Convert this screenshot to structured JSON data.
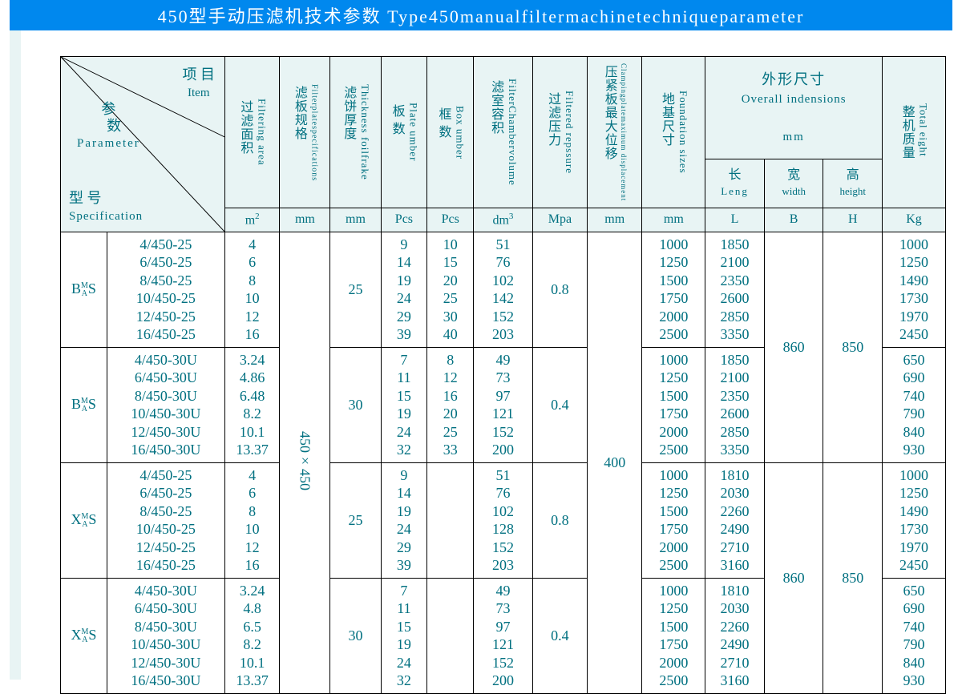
{
  "title": "450型手动压滤机技术参数 Type450manualfiltermachinetechniqueparameter",
  "header": {
    "diag": {
      "item": "项  目",
      "item_en": "Item",
      "param": "参",
      "param2": "数",
      "param_en": "Parameter",
      "spec": "型  号",
      "spec_en": "Specification"
    },
    "cols": [
      {
        "cn": "过滤面积",
        "en": "Filtering area",
        "unit": "m²"
      },
      {
        "cn": "滤板规格",
        "en": "Filterplatespecifications",
        "unit": "mm"
      },
      {
        "cn": "滤饼厚度",
        "en": "Thickness foilfrake",
        "unit": "mm"
      },
      {
        "cn": "板 数",
        "en": "Plate umber",
        "unit": "Pcs"
      },
      {
        "cn": "框 数",
        "en": "Box umber",
        "unit": "Pcs"
      },
      {
        "cn": "滤室容积",
        "en": "FilterChambervolume",
        "unit": "dm³"
      },
      {
        "cn": "过滤压力",
        "en": "Filtered repssure",
        "unit": "Mpa"
      },
      {
        "cn": "压紧板最大位移",
        "en": "Clampingplatemaximum displacement",
        "unit": "mm"
      },
      {
        "cn": "地基尺寸",
        "en": "Foundation sizes",
        "unit": "mm"
      }
    ],
    "overall": {
      "cn": "外形尺寸",
      "en": "Overall indensions",
      "unit": "mm",
      "sub": [
        {
          "cn": "长",
          "en": "Leng",
          "sym": "L"
        },
        {
          "cn": "宽",
          "en": "width",
          "sym": "B"
        },
        {
          "cn": "高",
          "en": "height",
          "sym": "H"
        }
      ]
    },
    "weight": {
      "cn": "整机质量",
      "en": "Total eight",
      "unit": "Kg"
    }
  },
  "plate_spec": "450×450",
  "max_disp": "400",
  "groups": [
    {
      "prefix_main": "B",
      "prefix_stack": "M\nA",
      "prefix_suffix": "S",
      "models": [
        "4/450-25",
        "6/450-25",
        "8/450-25",
        "10/450-25",
        "12/450-25",
        "16/450-25"
      ],
      "area": [
        "4",
        "6",
        "8",
        "10",
        "12",
        "16"
      ],
      "thick": "25",
      "plate": [
        "9",
        "14",
        "19",
        "24",
        "29",
        "39"
      ],
      "box": [
        "10",
        "15",
        "20",
        "25",
        "30",
        "40"
      ],
      "vol": [
        "51",
        "76",
        "102",
        "142",
        "152",
        "203"
      ],
      "press": "0.8",
      "found": [
        "1000",
        "1250",
        "1500",
        "1750",
        "2000",
        "2500"
      ],
      "L": [
        "1850",
        "2100",
        "2350",
        "2600",
        "2850",
        "3350"
      ],
      "B": "860",
      "H": "850",
      "wt": [
        "1000",
        "1250",
        "1490",
        "1730",
        "1970",
        "2450"
      ],
      "B_rowspan": 2
    },
    {
      "prefix_main": "B",
      "prefix_stack": "M\nA",
      "prefix_suffix": "S",
      "models": [
        "4/450-30U",
        "6/450-30U",
        "8/450-30U",
        "10/450-30U",
        "12/450-30U",
        "16/450-30U"
      ],
      "area": [
        "3.24",
        "4.86",
        "6.48",
        "8.2",
        "10.1",
        "13.37"
      ],
      "thick": "30",
      "plate": [
        "7",
        "11",
        "15",
        "19",
        "24",
        "32"
      ],
      "box": [
        "8",
        "12",
        "16",
        "20",
        "25",
        "33"
      ],
      "vol": [
        "49",
        "73",
        "97",
        "121",
        "152",
        "200"
      ],
      "press": "0.4",
      "found": [
        "1000",
        "1250",
        "1500",
        "1750",
        "2000",
        "2500"
      ],
      "L": [
        "1850",
        "2100",
        "2350",
        "2600",
        "2850",
        "3350"
      ],
      "wt": [
        "650",
        "690",
        "740",
        "790",
        "840",
        "930"
      ]
    },
    {
      "prefix_main": "X",
      "prefix_stack": "M\nA",
      "prefix_suffix": "S",
      "models": [
        "4/450-25",
        "6/450-25",
        "8/450-25",
        "10/450-25",
        "12/450-25",
        "16/450-25"
      ],
      "area": [
        "4",
        "6",
        "8",
        "10",
        "12",
        "16"
      ],
      "thick": "25",
      "plate": [
        "9",
        "14",
        "19",
        "24",
        "29",
        "39"
      ],
      "box": null,
      "vol": [
        "51",
        "76",
        "102",
        "128",
        "152",
        "203"
      ],
      "press": "0.8",
      "found": [
        "1000",
        "1250",
        "1500",
        "1750",
        "2000",
        "2500"
      ],
      "L": [
        "1810",
        "2030",
        "2260",
        "2490",
        "2710",
        "3160"
      ],
      "B": "860",
      "H": "850",
      "wt": [
        "1000",
        "1250",
        "1490",
        "1730",
        "1970",
        "2450"
      ],
      "B_rowspan": 2
    },
    {
      "prefix_main": "X",
      "prefix_stack": "M\nA",
      "prefix_suffix": "S",
      "models": [
        "4/450-30U",
        "6/450-30U",
        "8/450-30U",
        "10/450-30U",
        "12/450-30U",
        "16/450-30U"
      ],
      "area": [
        "3.24",
        "4.8",
        "6.5",
        "8.2",
        "10.1",
        "13.37"
      ],
      "thick": "30",
      "plate": [
        "7",
        "11",
        "15",
        "19",
        "24",
        "32"
      ],
      "box": null,
      "vol": [
        "49",
        "73",
        "97",
        "121",
        "152",
        "200"
      ],
      "press": "0.4",
      "found": [
        "1000",
        "1250",
        "1500",
        "1750",
        "2000",
        "2500"
      ],
      "L": [
        "1810",
        "2030",
        "2260",
        "2490",
        "2710",
        "3160"
      ],
      "wt": [
        "650",
        "690",
        "740",
        "790",
        "840",
        "930"
      ]
    }
  ],
  "style": {
    "title_bg": "#0088ee",
    "header_bg": "#e8f4f4",
    "text_color": "#007080",
    "border_color": "#000000"
  }
}
